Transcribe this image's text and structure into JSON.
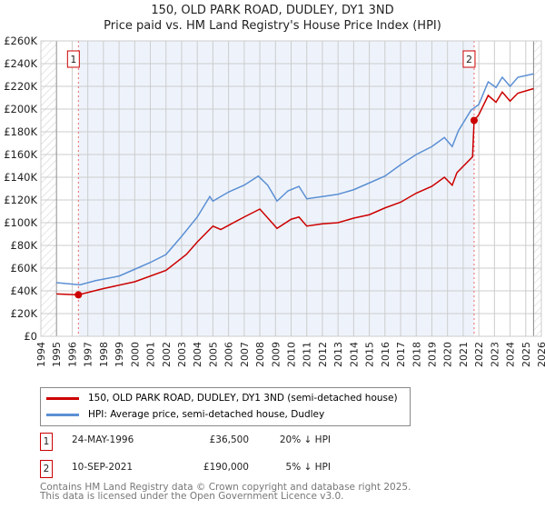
{
  "title": "150, OLD PARK ROAD, DUDLEY, DY1 3ND",
  "subtitle": "Price paid vs. HM Land Registry's House Price Index (HPI)",
  "chart_data": {
    "type": "line",
    "xlim": [
      1994,
      2026
    ],
    "ylim": [
      0,
      260000
    ],
    "x_ticks": [
      "1994",
      "1995",
      "1996",
      "1997",
      "1998",
      "1999",
      "2000",
      "2001",
      "2002",
      "2003",
      "2004",
      "2005",
      "2006",
      "2007",
      "2008",
      "2009",
      "2010",
      "2011",
      "2012",
      "2013",
      "2014",
      "2015",
      "2016",
      "2017",
      "2018",
      "2019",
      "2020",
      "2021",
      "2022",
      "2023",
      "2024",
      "2025",
      "2026"
    ],
    "y_ticks": [
      "£0",
      "£20K",
      "£40K",
      "£60K",
      "£80K",
      "£100K",
      "£120K",
      "£140K",
      "£160K",
      "£180K",
      "£200K",
      "£220K",
      "£240K",
      "£260K"
    ],
    "grid": true,
    "series": [
      {
        "name": "150, OLD PARK ROAD, DUDLEY, DY1 3ND (semi-detached house)",
        "color": "#cc0000",
        "x": [
          1995,
          1996.4,
          1998,
          2000,
          2002,
          2003.3,
          2004,
          2005,
          2005.5,
          2007,
          2008,
          2009.1,
          2010,
          2010.5,
          2011,
          2012,
          2013,
          2014,
          2015,
          2016,
          2017,
          2018,
          2019,
          2019.8,
          2020.3,
          2020.6,
          2021.6,
          2021.7,
          2022,
          2022.6,
          2023.1,
          2023.5,
          2024,
          2024.5,
          2025.5
        ],
        "y": [
          37300,
          36500,
          42000,
          48000,
          58000,
          72000,
          83000,
          97000,
          94000,
          105000,
          112000,
          95000,
          103000,
          105000,
          97000,
          99000,
          100000,
          104000,
          107000,
          113000,
          118000,
          126000,
          132000,
          140000,
          133000,
          144000,
          158000,
          190000,
          195000,
          212000,
          206000,
          215000,
          207000,
          214000,
          218000
        ]
      },
      {
        "name": "HPI: Average price, semi-detached house, Dudley",
        "color": "#5b8fd4",
        "x": [
          1995,
          1996.5,
          1997.5,
          1999,
          2000,
          2001,
          2002,
          2003,
          2004,
          2004.8,
          2005,
          2006,
          2007,
          2007.9,
          2008.5,
          2009.1,
          2009.8,
          2010.5,
          2011,
          2012,
          2013,
          2014,
          2015,
          2016,
          2017,
          2018,
          2019,
          2019.8,
          2020.3,
          2020.7,
          2021.5,
          2022,
          2022.6,
          2023.1,
          2023.5,
          2024,
          2024.5,
          2025.5
        ],
        "y": [
          47200,
          45300,
          49000,
          53000,
          59000,
          65000,
          72000,
          88000,
          105000,
          123000,
          119000,
          127000,
          133000,
          141000,
          133000,
          119000,
          128000,
          132000,
          121000,
          123000,
          125000,
          129000,
          135000,
          141000,
          151000,
          160000,
          167000,
          175000,
          167000,
          181000,
          199000,
          204000,
          224000,
          219000,
          228000,
          220000,
          228000,
          231000
        ]
      }
    ],
    "annotations": [
      {
        "label": "1",
        "x": 1996.4,
        "y": 36500
      },
      {
        "label": "2",
        "x": 2021.7,
        "y": 190000
      }
    ],
    "legend": "below"
  },
  "transactions": [
    {
      "n": "1",
      "date": "24-MAY-1996",
      "price": "£36,500",
      "hpi": "20% ↓ HPI"
    },
    {
      "n": "2",
      "date": "10-SEP-2021",
      "price": "£190,000",
      "hpi": "5% ↓ HPI"
    }
  ],
  "footer1": "Contains HM Land Registry data © Crown copyright and database right 2025.",
  "footer2": "This data is licensed under the Open Government Licence v3.0."
}
